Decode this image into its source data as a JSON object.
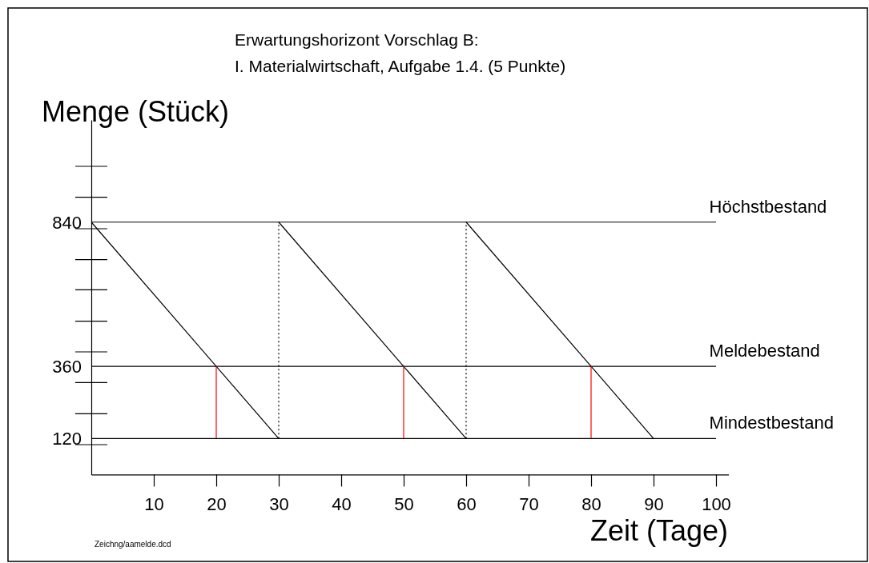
{
  "chart_data": {
    "type": "line",
    "title": "Erwartungshorizont Vorschlag B:",
    "subtitle": "I. Materialwirtschaft, Aufgabe 1.4. (5 Punkte)",
    "xlabel": "Zeit (Tage)",
    "ylabel": "Menge (Stück)",
    "xlim": [
      0,
      102
    ],
    "xticks": [
      10,
      20,
      30,
      40,
      50,
      60,
      70,
      80,
      90,
      100
    ],
    "ylim": [
      0,
      1180
    ],
    "yticks": [
      120,
      360,
      840
    ],
    "series": [
      {
        "color": "#000000",
        "x": [
          0,
          30
        ],
        "values": [
          840,
          120
        ]
      },
      {
        "color": "#000000",
        "x": [
          30,
          60
        ],
        "values": [
          840,
          120
        ]
      },
      {
        "color": "#000000",
        "x": [
          60,
          90
        ],
        "values": [
          840,
          120
        ]
      },
      {
        "color": "#000000",
        "x": [
          30,
          30
        ],
        "values": [
          120,
          840
        ],
        "line_style": "dotted"
      },
      {
        "color": "#000000",
        "x": [
          60,
          60
        ],
        "values": [
          120,
          840
        ],
        "line_style": "dotted"
      },
      {
        "color": "#ff0000",
        "x": [
          20,
          20
        ],
        "values": [
          120,
          360
        ]
      },
      {
        "color": "#ff0000",
        "x": [
          50,
          50
        ],
        "values": [
          120,
          360
        ]
      },
      {
        "color": "#ff0000",
        "x": [
          80,
          80
        ],
        "values": [
          120,
          360
        ]
      }
    ],
    "ref_lines": [
      {
        "axis": "y",
        "value": 840,
        "label": "Höchstbestand"
      },
      {
        "axis": "y",
        "value": 360,
        "label": "Meldebestand"
      },
      {
        "axis": "y",
        "value": 120,
        "label": "Mindestbestand"
      }
    ],
    "annotations": [
      "Zeichng/aamelde.dcd"
    ]
  }
}
